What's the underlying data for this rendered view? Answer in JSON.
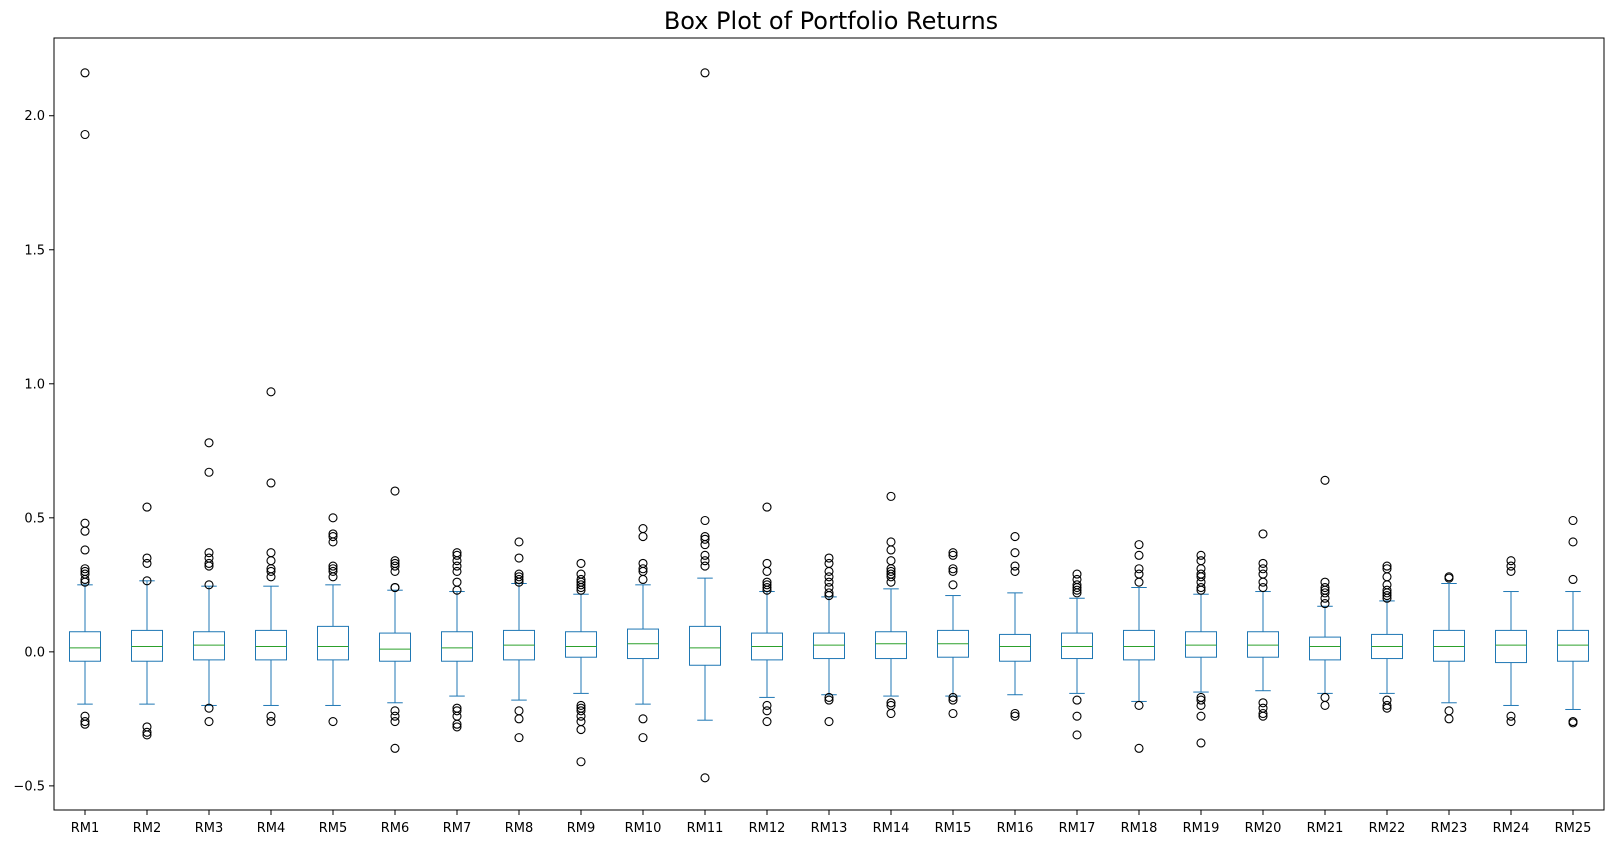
{
  "chart_data": {
    "type": "box",
    "title": "Box Plot of Portfolio Returns",
    "xlabel": "",
    "ylabel": "",
    "ylim": [
      -0.59,
      2.29
    ],
    "yticks": [
      -0.5,
      0.0,
      0.5,
      1.0,
      1.5,
      2.0
    ],
    "ytick_labels": [
      "−0.5",
      "0.0",
      "0.5",
      "1.0",
      "1.5",
      "2.0"
    ],
    "grid": false,
    "colors": {
      "box": "#1f77b4",
      "median": "#2ca02c",
      "outlier": "#000000"
    },
    "series": [
      {
        "name": "RM1",
        "q1": -0.035,
        "median": 0.015,
        "q3": 0.075,
        "whisker_low": -0.195,
        "whisker_high": 0.25,
        "outliers": [
          2.16,
          1.93,
          0.48,
          0.45,
          0.38,
          0.31,
          0.3,
          0.29,
          0.27,
          0.26,
          -0.24,
          -0.26,
          -0.27
        ]
      },
      {
        "name": "RM2",
        "q1": -0.035,
        "median": 0.02,
        "q3": 0.08,
        "whisker_low": -0.195,
        "whisker_high": 0.265,
        "outliers": [
          0.54,
          0.35,
          0.33,
          0.265,
          -0.28,
          -0.3,
          -0.31
        ]
      },
      {
        "name": "RM3",
        "q1": -0.03,
        "median": 0.025,
        "q3": 0.075,
        "whisker_low": -0.2,
        "whisker_high": 0.245,
        "outliers": [
          0.78,
          0.67,
          0.37,
          0.35,
          0.33,
          0.32,
          0.25,
          -0.21,
          -0.26
        ]
      },
      {
        "name": "RM4",
        "q1": -0.03,
        "median": 0.02,
        "q3": 0.08,
        "whisker_low": -0.2,
        "whisker_high": 0.245,
        "outliers": [
          0.97,
          0.63,
          0.37,
          0.34,
          0.31,
          0.3,
          0.28,
          -0.24,
          -0.26
        ]
      },
      {
        "name": "RM5",
        "q1": -0.03,
        "median": 0.02,
        "q3": 0.095,
        "whisker_low": -0.2,
        "whisker_high": 0.25,
        "outliers": [
          0.5,
          0.44,
          0.43,
          0.41,
          0.32,
          0.31,
          0.3,
          0.28,
          -0.26
        ]
      },
      {
        "name": "RM6",
        "q1": -0.035,
        "median": 0.01,
        "q3": 0.07,
        "whisker_low": -0.19,
        "whisker_high": 0.23,
        "outliers": [
          0.6,
          0.34,
          0.33,
          0.32,
          0.3,
          0.24,
          0.24,
          -0.22,
          -0.24,
          -0.26,
          -0.36
        ]
      },
      {
        "name": "RM7",
        "q1": -0.035,
        "median": 0.015,
        "q3": 0.075,
        "whisker_low": -0.165,
        "whisker_high": 0.225,
        "outliers": [
          0.37,
          0.36,
          0.34,
          0.32,
          0.3,
          0.26,
          0.23,
          -0.21,
          -0.22,
          -0.24,
          -0.27,
          -0.28
        ]
      },
      {
        "name": "RM8",
        "q1": -0.03,
        "median": 0.025,
        "q3": 0.08,
        "whisker_low": -0.18,
        "whisker_high": 0.255,
        "outliers": [
          0.41,
          0.35,
          0.29,
          0.28,
          0.27,
          0.26,
          -0.22,
          -0.25,
          -0.32
        ]
      },
      {
        "name": "RM9",
        "q1": -0.02,
        "median": 0.02,
        "q3": 0.075,
        "whisker_low": -0.155,
        "whisker_high": 0.215,
        "outliers": [
          0.33,
          0.29,
          0.27,
          0.26,
          0.25,
          0.24,
          0.23,
          -0.2,
          -0.21,
          -0.22,
          -0.24,
          -0.26,
          -0.29,
          -0.41
        ]
      },
      {
        "name": "RM10",
        "q1": -0.025,
        "median": 0.03,
        "q3": 0.085,
        "whisker_low": -0.195,
        "whisker_high": 0.25,
        "outliers": [
          0.46,
          0.43,
          0.33,
          0.31,
          0.3,
          0.27,
          -0.25,
          -0.32
        ]
      },
      {
        "name": "RM11",
        "q1": -0.05,
        "median": 0.015,
        "q3": 0.095,
        "whisker_low": -0.255,
        "whisker_high": 0.275,
        "outliers": [
          2.16,
          0.49,
          0.43,
          0.42,
          0.4,
          0.36,
          0.34,
          0.32,
          -0.47
        ]
      },
      {
        "name": "RM12",
        "q1": -0.03,
        "median": 0.02,
        "q3": 0.07,
        "whisker_low": -0.17,
        "whisker_high": 0.225,
        "outliers": [
          0.54,
          0.33,
          0.3,
          0.26,
          0.25,
          0.24,
          0.23,
          -0.2,
          -0.22,
          -0.26
        ]
      },
      {
        "name": "RM13",
        "q1": -0.025,
        "median": 0.025,
        "q3": 0.07,
        "whisker_low": -0.16,
        "whisker_high": 0.205,
        "outliers": [
          0.35,
          0.33,
          0.3,
          0.28,
          0.26,
          0.24,
          0.22,
          0.21,
          -0.17,
          -0.18,
          -0.26
        ]
      },
      {
        "name": "RM14",
        "q1": -0.025,
        "median": 0.03,
        "q3": 0.075,
        "whisker_low": -0.165,
        "whisker_high": 0.235,
        "outliers": [
          0.58,
          0.41,
          0.38,
          0.34,
          0.31,
          0.3,
          0.29,
          0.28,
          0.26,
          -0.19,
          -0.2,
          -0.23
        ]
      },
      {
        "name": "RM15",
        "q1": -0.02,
        "median": 0.03,
        "q3": 0.08,
        "whisker_low": -0.165,
        "whisker_high": 0.21,
        "outliers": [
          0.37,
          0.36,
          0.31,
          0.3,
          0.25,
          -0.17,
          -0.18,
          -0.23
        ]
      },
      {
        "name": "RM16",
        "q1": -0.035,
        "median": 0.02,
        "q3": 0.065,
        "whisker_low": -0.16,
        "whisker_high": 0.22,
        "outliers": [
          0.43,
          0.37,
          0.32,
          0.3,
          -0.23,
          -0.24
        ]
      },
      {
        "name": "RM17",
        "q1": -0.025,
        "median": 0.02,
        "q3": 0.07,
        "whisker_low": -0.155,
        "whisker_high": 0.2,
        "outliers": [
          0.29,
          0.27,
          0.25,
          0.24,
          0.23,
          0.22,
          -0.18,
          -0.24,
          -0.31
        ]
      },
      {
        "name": "RM18",
        "q1": -0.03,
        "median": 0.02,
        "q3": 0.08,
        "whisker_low": -0.185,
        "whisker_high": 0.24,
        "outliers": [
          0.4,
          0.36,
          0.31,
          0.29,
          0.26,
          -0.2,
          -0.36
        ]
      },
      {
        "name": "RM19",
        "q1": -0.02,
        "median": 0.025,
        "q3": 0.075,
        "whisker_low": -0.15,
        "whisker_high": 0.215,
        "outliers": [
          0.36,
          0.34,
          0.31,
          0.29,
          0.28,
          0.26,
          0.24,
          0.23,
          -0.17,
          -0.18,
          -0.2,
          -0.24,
          -0.34
        ]
      },
      {
        "name": "RM20",
        "q1": -0.02,
        "median": 0.025,
        "q3": 0.075,
        "whisker_low": -0.145,
        "whisker_high": 0.225,
        "outliers": [
          0.44,
          0.33,
          0.31,
          0.29,
          0.26,
          0.24,
          -0.19,
          -0.21,
          -0.23,
          -0.24
        ]
      },
      {
        "name": "RM21",
        "q1": -0.03,
        "median": 0.02,
        "q3": 0.055,
        "whisker_low": -0.155,
        "whisker_high": 0.17,
        "outliers": [
          0.64,
          0.26,
          0.24,
          0.23,
          0.22,
          0.2,
          0.18,
          -0.17,
          -0.2
        ]
      },
      {
        "name": "RM22",
        "q1": -0.025,
        "median": 0.02,
        "q3": 0.065,
        "whisker_low": -0.155,
        "whisker_high": 0.19,
        "outliers": [
          0.32,
          0.31,
          0.28,
          0.25,
          0.23,
          0.22,
          0.21,
          0.2,
          -0.18,
          -0.2,
          -0.21
        ]
      },
      {
        "name": "RM23",
        "q1": -0.035,
        "median": 0.02,
        "q3": 0.08,
        "whisker_low": -0.19,
        "whisker_high": 0.255,
        "outliers": [
          0.28,
          0.275,
          -0.22,
          -0.25
        ]
      },
      {
        "name": "RM24",
        "q1": -0.04,
        "median": 0.025,
        "q3": 0.08,
        "whisker_low": -0.2,
        "whisker_high": 0.225,
        "outliers": [
          0.34,
          0.32,
          0.3,
          -0.24,
          -0.26
        ]
      },
      {
        "name": "RM25",
        "q1": -0.035,
        "median": 0.025,
        "q3": 0.08,
        "whisker_low": -0.215,
        "whisker_high": 0.225,
        "outliers": [
          0.49,
          0.41,
          0.27,
          -0.26,
          -0.265
        ]
      }
    ]
  }
}
